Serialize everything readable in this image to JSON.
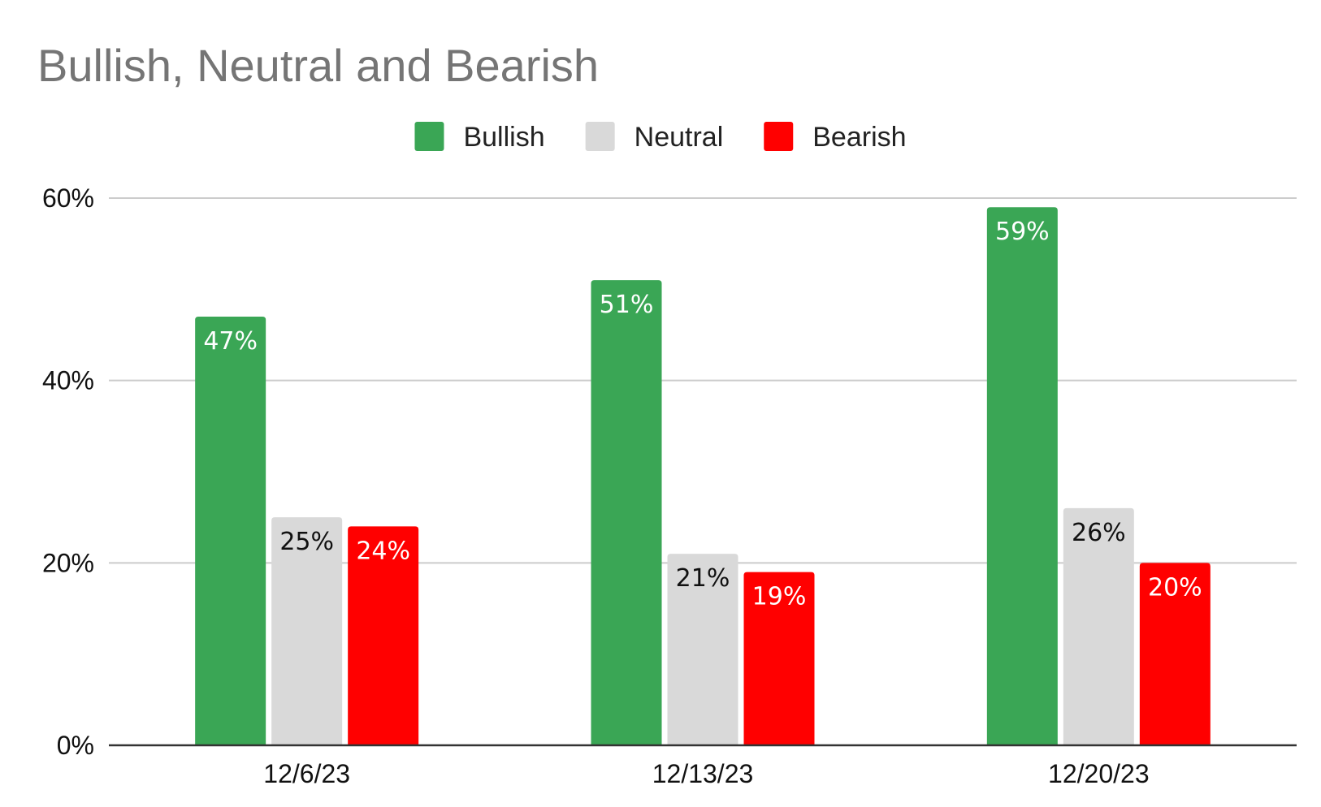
{
  "chart_data": {
    "type": "bar",
    "title": "Bullish, Neutral and Bearish",
    "xlabel": "",
    "ylabel": "",
    "categories": [
      "12/6/23",
      "12/13/23",
      "12/20/23"
    ],
    "series": [
      {
        "name": "Bullish",
        "color": "#3aa655",
        "label_color": "#ffffff",
        "values": [
          47,
          51,
          59
        ],
        "labels": [
          "47%",
          "51%",
          "59%"
        ]
      },
      {
        "name": "Neutral",
        "color": "#d9d9d9",
        "label_color": "#111111",
        "values": [
          25,
          21,
          26
        ],
        "labels": [
          "25%",
          "21%",
          "26%"
        ]
      },
      {
        "name": "Bearish",
        "color": "#ff0000",
        "label_color": "#ffffff",
        "values": [
          24,
          19,
          20
        ],
        "labels": [
          "24%",
          "19%",
          "20%"
        ]
      }
    ],
    "ylim": [
      0,
      60
    ],
    "yticks": [
      0,
      20,
      40,
      60
    ],
    "ytick_labels": [
      "0%",
      "20%",
      "40%",
      "60%"
    ],
    "grid": true,
    "legend_position": "top-center",
    "gridline_color": "#cccccc",
    "axis_color": "#333333"
  }
}
